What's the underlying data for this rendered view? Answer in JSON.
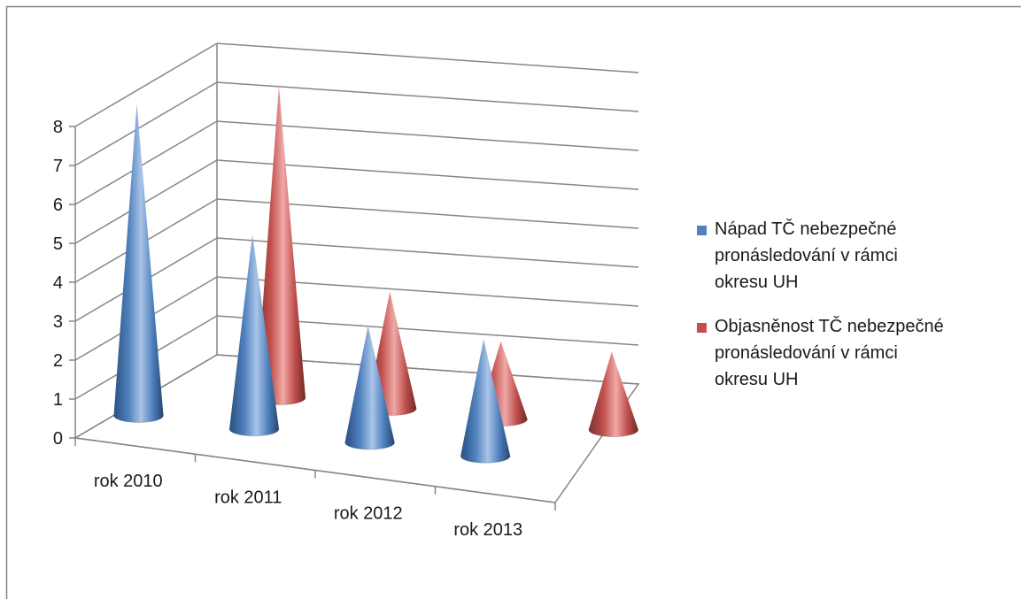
{
  "chart_data": {
    "type": "bar",
    "subtype": "3d-cone",
    "title": "",
    "xlabel": "",
    "ylabel": "",
    "ylim": [
      0,
      8
    ],
    "yticks": [
      0,
      1,
      2,
      3,
      4,
      5,
      6,
      7,
      8
    ],
    "grid": true,
    "legend_position": "right",
    "categories": [
      "rok 2010",
      "rok 2011",
      "rok 2012",
      "rok 2013"
    ],
    "series": [
      {
        "name": "Nápad TČ nebezpečné pronásledování v rámci okresu UH",
        "values": [
          8,
          5,
          3,
          3
        ],
        "color": "#4F81BD"
      },
      {
        "name": "Objasněnost TČ nebezpečné pronásledování v rámci okresu UH",
        "values": [
          8,
          3,
          2,
          2
        ],
        "color": "#C0504D"
      }
    ]
  }
}
